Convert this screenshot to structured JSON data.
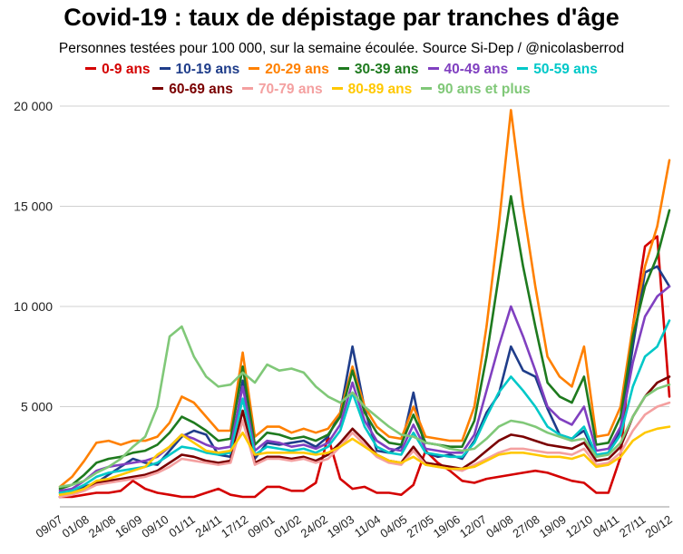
{
  "chart_data": {
    "type": "line",
    "title": "Covid-19 : taux de dépistage par tranches d'âge",
    "subtitle": "Personnes testées pour 100 000, sur la semaine écoulée. Source Si-Dep / @nicolasberrod",
    "xlabel": "",
    "ylabel": "",
    "ylim": [
      0,
      20000
    ],
    "yticks": [
      5000,
      10000,
      15000,
      20000
    ],
    "ytick_labels": [
      "5 000",
      "10 000",
      "15 000",
      "20 000"
    ],
    "grid": "horizontal",
    "legend_position": "top",
    "x_labels": [
      "09/07",
      "01/08",
      "24/08",
      "16/09",
      "09/10",
      "01/11",
      "24/11",
      "17/12",
      "09/01",
      "01/02",
      "24/02",
      "19/03",
      "11/04",
      "04/05",
      "27/05",
      "19/06",
      "12/07",
      "04/08",
      "27/08",
      "19/09",
      "12/10",
      "04/11",
      "27/11",
      "20/12"
    ],
    "series": [
      {
        "name": "0-9 ans",
        "color": "#d40000",
        "values": [
          500,
          500,
          600,
          700,
          700,
          800,
          1300,
          900,
          700,
          600,
          500,
          500,
          700,
          900,
          600,
          500,
          500,
          1000,
          1000,
          800,
          800,
          1200,
          3500,
          1400,
          900,
          1000,
          700,
          700,
          600,
          1100,
          2800,
          2200,
          1800,
          1300,
          1200,
          1400,
          1500,
          1600,
          1700,
          1800,
          1700,
          1500,
          1300,
          1200,
          700,
          700,
          2500,
          9000,
          13000,
          13500,
          5500
        ]
      },
      {
        "name": "10-19 ans",
        "color": "#1f3d8a",
        "values": [
          700,
          800,
          1000,
          1200,
          1600,
          2000,
          2400,
          2200,
          2100,
          2800,
          3500,
          3800,
          3600,
          2600,
          2500,
          6300,
          2400,
          3200,
          3100,
          3200,
          3300,
          3000,
          3500,
          4700,
          8000,
          4900,
          2800,
          2700,
          3000,
          5700,
          2700,
          2500,
          2600,
          2400,
          3300,
          4700,
          5600,
          8000,
          6800,
          6500,
          4900,
          3600,
          3400,
          3800,
          2500,
          2700,
          3800,
          8000,
          11700,
          12000,
          11000
        ]
      },
      {
        "name": "20-29 ans",
        "color": "#ff8000",
        "values": [
          1000,
          1500,
          2300,
          3200,
          3300,
          3100,
          3300,
          3300,
          3500,
          4200,
          5500,
          5200,
          4500,
          3800,
          3800,
          7700,
          3500,
          4000,
          4000,
          3700,
          3900,
          3700,
          3900,
          4700,
          7000,
          5000,
          4000,
          3500,
          3400,
          5000,
          3500,
          3400,
          3300,
          3300,
          5000,
          9000,
          14000,
          19800,
          15000,
          11000,
          7500,
          6500,
          6000,
          8000,
          3500,
          3600,
          5000,
          9000,
          12000,
          14000,
          17300
        ]
      },
      {
        "name": "30-39 ans",
        "color": "#1e7a1e",
        "values": [
          900,
          1100,
          1600,
          2200,
          2400,
          2500,
          2700,
          2800,
          3100,
          3700,
          4500,
          4200,
          3800,
          3300,
          3400,
          7000,
          3100,
          3700,
          3600,
          3400,
          3500,
          3300,
          3600,
          4500,
          6800,
          4700,
          3700,
          3200,
          3100,
          4600,
          3200,
          3100,
          3000,
          3000,
          4300,
          7500,
          11500,
          15500,
          12000,
          9000,
          6200,
          5500,
          5200,
          6500,
          3100,
          3200,
          4500,
          8500,
          11000,
          12500,
          14800
        ]
      },
      {
        "name": "40-49 ans",
        "color": "#8040c0",
        "values": [
          800,
          900,
          1300,
          1800,
          2000,
          2100,
          2200,
          2300,
          2500,
          3000,
          3600,
          3400,
          3100,
          2900,
          3000,
          6000,
          2800,
          3300,
          3200,
          3000,
          3100,
          2900,
          3200,
          4100,
          6200,
          4300,
          3300,
          2900,
          2800,
          4100,
          2900,
          2800,
          2700,
          2700,
          3600,
          5800,
          8000,
          10000,
          8500,
          6800,
          5000,
          4400,
          4100,
          5000,
          2800,
          2900,
          4000,
          7200,
          9500,
          10500,
          11000
        ]
      },
      {
        "name": "50-59 ans",
        "color": "#00c8c8",
        "values": [
          700,
          800,
          1100,
          1500,
          1700,
          1800,
          1900,
          2000,
          2200,
          2600,
          3000,
          2900,
          2700,
          2600,
          2700,
          5400,
          2600,
          3000,
          2900,
          2800,
          2900,
          2700,
          3000,
          3800,
          5700,
          4000,
          3000,
          2700,
          2600,
          3700,
          2700,
          2600,
          2500,
          2500,
          3200,
          4500,
          5700,
          6500,
          5800,
          5000,
          4000,
          3600,
          3400,
          4000,
          2600,
          2700,
          3600,
          6000,
          7500,
          8000,
          9300
        ]
      },
      {
        "name": "60-69 ans",
        "color": "#7a0000",
        "values": [
          500,
          600,
          900,
          1200,
          1300,
          1400,
          1500,
          1600,
          1800,
          2200,
          2600,
          2500,
          2300,
          2200,
          2300,
          4800,
          2200,
          2500,
          2500,
          2400,
          2500,
          2300,
          2600,
          3200,
          3900,
          3300,
          2600,
          2300,
          2200,
          3000,
          2200,
          2100,
          2000,
          1900,
          2300,
          2800,
          3300,
          3600,
          3500,
          3300,
          3100,
          3000,
          2900,
          3200,
          2300,
          2400,
          3000,
          4500,
          5500,
          6200,
          6500
        ]
      },
      {
        "name": "70-79 ans",
        "color": "#f4a0a0",
        "values": [
          500,
          600,
          800,
          1100,
          1200,
          1300,
          1400,
          1500,
          1700,
          2000,
          2400,
          2300,
          2200,
          2100,
          2200,
          4300,
          2100,
          2400,
          2400,
          2300,
          2400,
          2200,
          2400,
          3000,
          3700,
          3100,
          2500,
          2200,
          2100,
          2800,
          2100,
          2000,
          1900,
          1800,
          2100,
          2400,
          2700,
          2900,
          2900,
          2800,
          2700,
          2700,
          2600,
          2900,
          2100,
          2200,
          2700,
          3800,
          4600,
          5000,
          5200
        ]
      },
      {
        "name": "80-89 ans",
        "color": "#ffc800",
        "values": [
          600,
          700,
          900,
          1300,
          1400,
          1600,
          1800,
          2000,
          2600,
          3000,
          3600,
          3200,
          2800,
          2700,
          2800,
          3700,
          2600,
          2700,
          2700,
          2700,
          2700,
          2600,
          2700,
          3000,
          3400,
          3000,
          2600,
          2300,
          2200,
          2500,
          2100,
          2000,
          1900,
          1900,
          2000,
          2300,
          2600,
          2700,
          2700,
          2600,
          2500,
          2500,
          2400,
          2600,
          2000,
          2100,
          2500,
          3300,
          3700,
          3900,
          4000
        ]
      },
      {
        "name": "90 ans et plus",
        "color": "#80c878",
        "values": [
          1000,
          1100,
          1300,
          1700,
          2000,
          2400,
          3000,
          3500,
          5000,
          8500,
          9000,
          7500,
          6500,
          6000,
          6100,
          6700,
          6200,
          7100,
          6800,
          6900,
          6700,
          6000,
          5500,
          5200,
          5700,
          5000,
          4500,
          4000,
          3600,
          3500,
          3200,
          3100,
          2900,
          2800,
          2900,
          3400,
          4000,
          4300,
          4200,
          4000,
          3700,
          3500,
          3300,
          3400,
          2500,
          2600,
          3200,
          4500,
          5500,
          5900,
          6100
        ]
      }
    ]
  }
}
